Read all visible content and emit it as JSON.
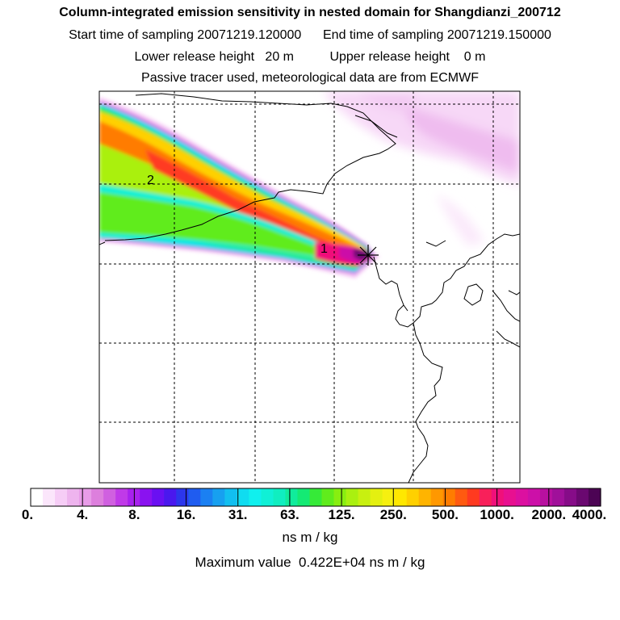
{
  "header": {
    "title": "Column-integrated emission sensitivity in nested domain for Shangdianzi_200712",
    "start_label": "Start time of sampling",
    "start_value": "20071219.120000",
    "end_label": "End time of sampling",
    "end_value": "20071219.150000",
    "lower_label": "Lower release height",
    "lower_value": "20 m",
    "upper_label": "Upper release height",
    "upper_value": "0 m",
    "tracer_note": "Passive tracer used, meteorological data are from ECMWF"
  },
  "map": {
    "contour_labels": [
      "1",
      "2"
    ],
    "release_marker": "release-site-marker"
  },
  "colorbar": {
    "tick_labels": [
      "0.",
      "4.",
      "8.",
      "16.",
      "31.",
      "63.",
      "125.",
      "250.",
      "500.",
      "1000.",
      "2000.",
      "4000."
    ],
    "colors": [
      "#ffffff",
      "#fbe6fb",
      "#f6cdf6",
      "#eeb4ee",
      "#e89ce8",
      "#dd7fdd",
      "#d060e0",
      "#c03ae8",
      "#a821ee",
      "#8a12f0",
      "#6a10f2",
      "#4a18ee",
      "#2c36ec",
      "#1f5cf0",
      "#1b80f2",
      "#17a0f0",
      "#12bff0",
      "#10dcf0",
      "#10f0ee",
      "#10f0d6",
      "#10eec0",
      "#10ec9c",
      "#14ea74",
      "#36ea38",
      "#60ec1c",
      "#88ee10",
      "#aaf010",
      "#c8f010",
      "#e4f010",
      "#f6f010",
      "#ffe800",
      "#ffd000",
      "#ffb400",
      "#ff9800",
      "#ff7c00",
      "#ff5a10",
      "#ff3a20",
      "#f8205a",
      "#f0107a",
      "#e81090",
      "#dc10a0",
      "#cc10a8",
      "#b810a0",
      "#a0109a",
      "#860c88",
      "#6a0870",
      "#4c0454"
    ],
    "unit": "ns m / kg",
    "max_label": "Maximum value",
    "max_value": "0.422E+04",
    "max_unit": "ns m / kg"
  }
}
